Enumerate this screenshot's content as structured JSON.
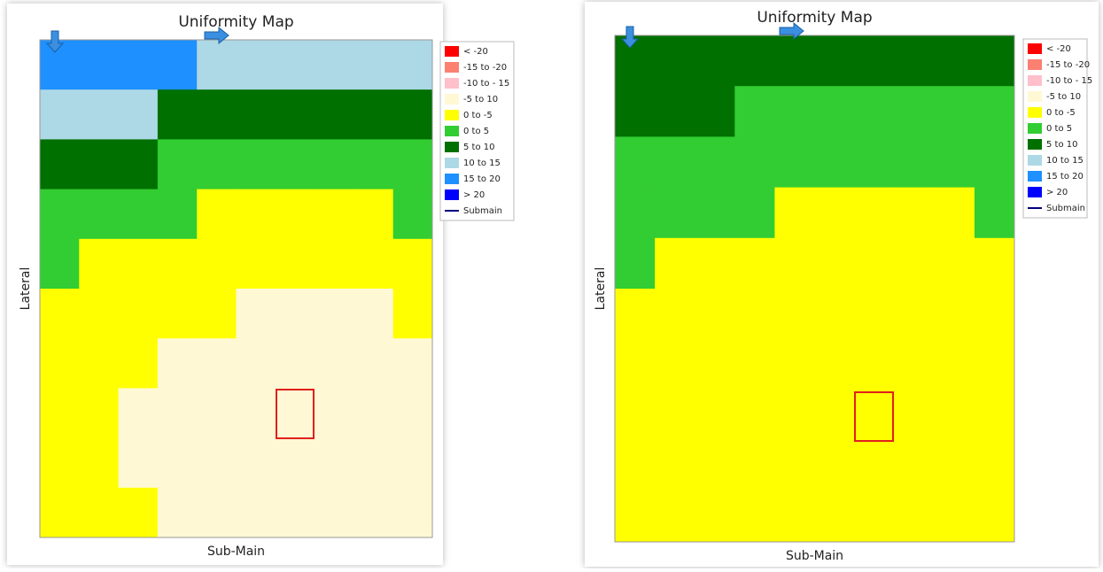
{
  "panels": [
    {
      "title": "Uniformity Map",
      "x_label": "Sub-Main",
      "y_label": "Lateral",
      "grid": [
        [
          "#1e90ff",
          "#1e90ff",
          "#1e90ff",
          "#1e90ff",
          "#add8e6",
          "#add8e6",
          "#add8e6",
          "#add8e6",
          "#add8e6",
          "#add8e6"
        ],
        [
          "#add8e6",
          "#add8e6",
          "#add8e6",
          "#007000",
          "#007000",
          "#007000",
          "#007000",
          "#007000",
          "#007000",
          "#007000"
        ],
        [
          "#007000",
          "#007000",
          "#007000",
          "#32cd32",
          "#32cd32",
          "#32cd32",
          "#32cd32",
          "#32cd32",
          "#32cd32",
          "#32cd32"
        ],
        [
          "#32cd32",
          "#32cd32",
          "#32cd32",
          "#32cd32",
          "#ffff00",
          "#ffff00",
          "#ffff00",
          "#ffff00",
          "#ffff00",
          "#32cd32"
        ],
        [
          "#32cd32",
          "#ffff00",
          "#ffff00",
          "#ffff00",
          "#ffff00",
          "#ffff00",
          "#ffff00",
          "#ffff00",
          "#ffff00",
          "#ffff00"
        ],
        [
          "#ffff00",
          "#ffff00",
          "#ffff00",
          "#ffff00",
          "#ffff00",
          "#fff8d4",
          "#fff8d4",
          "#fff8d4",
          "#fff8d4",
          "#ffff00"
        ],
        [
          "#ffff00",
          "#ffff00",
          "#ffff00",
          "#fff8d4",
          "#fff8d4",
          "#fff8d4",
          "#fff8d4",
          "#fff8d4",
          "#fff8d4",
          "#fff8d4"
        ],
        [
          "#ffff00",
          "#ffff00",
          "#fff8d4",
          "#fff8d4",
          "#fff8d4",
          "#fff8d4",
          "#fff8d4",
          "#fff8d4",
          "#fff8d4",
          "#fff8d4"
        ],
        [
          "#ffff00",
          "#ffff00",
          "#fff8d4",
          "#fff8d4",
          "#fff8d4",
          "#fff8d4",
          "#fff8d4",
          "#fff8d4",
          "#fff8d4",
          "#fff8d4"
        ],
        [
          "#ffff00",
          "#ffff00",
          "#ffff00",
          "#fff8d4",
          "#fff8d4",
          "#fff8d4",
          "#fff8d4",
          "#fff8d4",
          "#fff8d4",
          "#fff8d4"
        ]
      ]
    },
    {
      "title": "Uniformity Map",
      "x_label": "Sub-Main",
      "y_label": "Lateral",
      "grid": [
        [
          "#007000",
          "#007000",
          "#007000",
          "#007000",
          "#007000",
          "#007000",
          "#007000",
          "#007000",
          "#007000",
          "#007000"
        ],
        [
          "#007000",
          "#007000",
          "#007000",
          "#32cd32",
          "#32cd32",
          "#32cd32",
          "#32cd32",
          "#32cd32",
          "#32cd32",
          "#32cd32"
        ],
        [
          "#32cd32",
          "#32cd32",
          "#32cd32",
          "#32cd32",
          "#32cd32",
          "#32cd32",
          "#32cd32",
          "#32cd32",
          "#32cd32",
          "#32cd32"
        ],
        [
          "#32cd32",
          "#32cd32",
          "#32cd32",
          "#32cd32",
          "#ffff00",
          "#ffff00",
          "#ffff00",
          "#ffff00",
          "#ffff00",
          "#32cd32"
        ],
        [
          "#32cd32",
          "#ffff00",
          "#ffff00",
          "#ffff00",
          "#ffff00",
          "#ffff00",
          "#ffff00",
          "#ffff00",
          "#ffff00",
          "#ffff00"
        ],
        [
          "#ffff00",
          "#ffff00",
          "#ffff00",
          "#ffff00",
          "#ffff00",
          "#ffff00",
          "#ffff00",
          "#ffff00",
          "#ffff00",
          "#ffff00"
        ],
        [
          "#ffff00",
          "#ffff00",
          "#ffff00",
          "#ffff00",
          "#ffff00",
          "#ffff00",
          "#ffff00",
          "#ffff00",
          "#ffff00",
          "#ffff00"
        ],
        [
          "#ffff00",
          "#ffff00",
          "#ffff00",
          "#ffff00",
          "#ffff00",
          "#ffff00",
          "#ffff00",
          "#ffff00",
          "#ffff00",
          "#ffff00"
        ],
        [
          "#ffff00",
          "#ffff00",
          "#ffff00",
          "#ffff00",
          "#ffff00",
          "#ffff00",
          "#ffff00",
          "#ffff00",
          "#ffff00",
          "#ffff00"
        ],
        [
          "#ffff00",
          "#ffff00",
          "#ffff00",
          "#ffff00",
          "#ffff00",
          "#ffff00",
          "#ffff00",
          "#ffff00",
          "#ffff00",
          "#ffff00"
        ]
      ]
    }
  ],
  "legend": [
    {
      "label": "< -20",
      "color": "#ff0000"
    },
    {
      "label": "-15 to -20",
      "color": "#fa8072"
    },
    {
      "label": "-10 to - 15",
      "color": "#ffc0cb"
    },
    {
      "label": "-5 to 10",
      "color": "#fff8d4"
    },
    {
      "label": "0 to -5",
      "color": "#ffff00"
    },
    {
      "label": "0 to 5",
      "color": "#32cd32"
    },
    {
      "label": "5 to 10",
      "color": "#007000"
    },
    {
      "label": "10 to 15",
      "color": "#add8e6"
    },
    {
      "label": "15 to 20",
      "color": "#1e90ff"
    },
    {
      "label": "> 20",
      "color": "#0000ff"
    },
    {
      "label": "Submain",
      "color": "#000080"
    }
  ]
}
